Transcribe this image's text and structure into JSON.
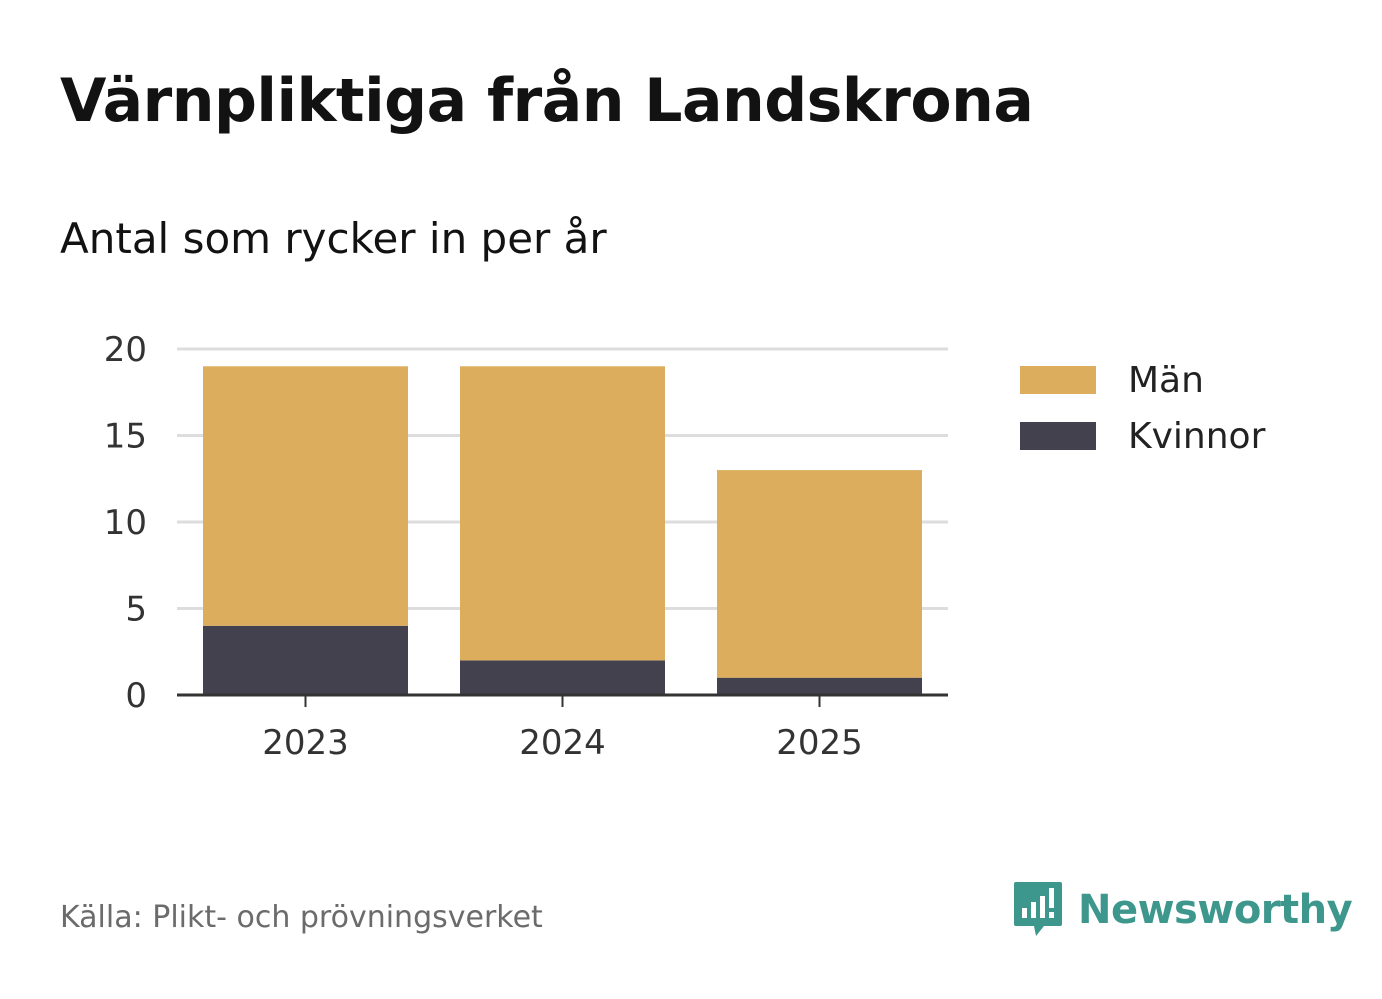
{
  "header": {
    "title": "Värnpliktiga från Landskrona",
    "subtitle": "Antal som rycker in per år"
  },
  "legend": {
    "items": [
      {
        "label": "Män",
        "color": "#dbad5c"
      },
      {
        "label": "Kvinnor",
        "color": "#43414e"
      }
    ]
  },
  "footer": {
    "source": "Källa: Plikt- och prövningsverket",
    "brand": "Newsworthy",
    "brand_color": "#3d978c"
  },
  "chart_data": {
    "type": "bar",
    "stacked": true,
    "categories": [
      "2023",
      "2024",
      "2025"
    ],
    "series": [
      {
        "name": "Kvinnor",
        "values": [
          4,
          2,
          1
        ],
        "color": "#43414e"
      },
      {
        "name": "Män",
        "values": [
          15,
          17,
          12
        ],
        "color": "#dbad5c"
      }
    ],
    "title": "Värnpliktiga från Landskrona",
    "subtitle": "Antal som rycker in per år",
    "yticks": [
      0,
      5,
      10,
      15,
      20
    ],
    "ylim": [
      0,
      20
    ],
    "grid": true,
    "legend_position": "right"
  }
}
